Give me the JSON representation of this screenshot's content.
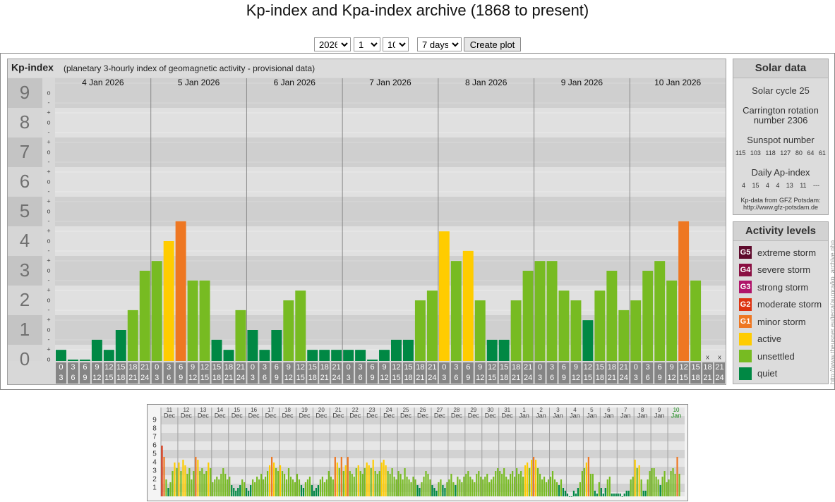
{
  "page": {
    "title": "Kp-index and Kpa-index archive (1868 to present)",
    "vertical_url": "http://www.theusner.eu/terra/aurora/kp_archive.php"
  },
  "form": {
    "year": "2026",
    "month": "1",
    "day": "10",
    "period": "7 days",
    "button": "Create plot"
  },
  "chart_data": [
    {
      "type": "bar",
      "title": "Kp-index",
      "subtitle": "(planetary 3-hourly index of geomagnetic activity - provisional data)",
      "days": [
        "4 Jan 2026",
        "5 Jan 2026",
        "6 Jan 2026",
        "7 Jan 2026",
        "8 Jan 2026",
        "9 Jan 2026",
        "10 Jan 2026"
      ],
      "hours": [
        [
          "0",
          "3"
        ],
        [
          "3",
          "6"
        ],
        [
          "6",
          "9"
        ],
        [
          "9",
          "12"
        ],
        [
          "12",
          "15"
        ],
        [
          "15",
          "18"
        ],
        [
          "18",
          "21"
        ],
        [
          "21",
          "24"
        ]
      ],
      "values": [
        0.33,
        0,
        0,
        0.67,
        0.33,
        1,
        1.67,
        3,
        3.33,
        4,
        4.67,
        2.67,
        2.67,
        0.67,
        0.33,
        1.67,
        1,
        0.33,
        1,
        2,
        2.33,
        0.33,
        0.33,
        0.33,
        0.33,
        0.33,
        0,
        0.33,
        0.67,
        0.67,
        2,
        2.33,
        4.33,
        3.33,
        3.67,
        2,
        0.67,
        0.67,
        2,
        3,
        3.33,
        3.33,
        2.33,
        2,
        1.33,
        2.33,
        3,
        1.67,
        2,
        3,
        3.33,
        2.67,
        4.67,
        2.67,
        null,
        null
      ],
      "colors": [
        "#084",
        "#084",
        "#084",
        "#084",
        "#084",
        "#084",
        "#7b2",
        "#7b2",
        "#7b2",
        "#fc0",
        "#e72",
        "#7b2",
        "#7b2",
        "#084",
        "#084",
        "#7b2",
        "#084",
        "#084",
        "#084",
        "#7b2",
        "#7b2",
        "#084",
        "#084",
        "#084",
        "#084",
        "#084",
        "#084",
        "#084",
        "#084",
        "#084",
        "#7b2",
        "#7b2",
        "#fc0",
        "#7b2",
        "#fc0",
        "#7b2",
        "#084",
        "#084",
        "#7b2",
        "#7b2",
        "#7b2",
        "#7b2",
        "#7b2",
        "#7b2",
        "#084",
        "#7b2",
        "#7b2",
        "#7b2",
        "#7b2",
        "#7b2",
        "#7b2",
        "#7b2",
        "#e72",
        "#7b2",
        null,
        null
      ],
      "missing_label": "x",
      "ylim": [
        0,
        9.5
      ],
      "yticks": [
        0,
        1,
        2,
        3,
        4,
        5,
        6,
        7,
        8,
        9
      ],
      "tick_suffixes": [
        "-",
        "o",
        "+"
      ]
    },
    {
      "type": "bar",
      "days": [
        "11",
        "12",
        "13",
        "14",
        "15",
        "16",
        "17",
        "18",
        "19",
        "20",
        "21",
        "22",
        "23",
        "24",
        "25",
        "26",
        "27",
        "28",
        "29",
        "30",
        "31",
        "1",
        "2",
        "3",
        "4",
        "5",
        "6",
        "7",
        "8",
        "9",
        "10"
      ],
      "months": [
        "Dec",
        "Dec",
        "Dec",
        "Dec",
        "Dec",
        "Dec",
        "Dec",
        "Dec",
        "Dec",
        "Dec",
        "Dec",
        "Dec",
        "Dec",
        "Dec",
        "Dec",
        "Dec",
        "Dec",
        "Dec",
        "Dec",
        "Dec",
        "Dec",
        "Jan",
        "Jan",
        "Jan",
        "Jan",
        "Jan",
        "Jan",
        "Jan",
        "Jan",
        "Jan",
        "Jan"
      ],
      "today_color": "#1a8a1a",
      "values": [
        6,
        4.67,
        2,
        1,
        1.67,
        3,
        4,
        3.33,
        4,
        3,
        4.33,
        3.67,
        2.67,
        3.33,
        2,
        3,
        4.67,
        4.33,
        3,
        3.33,
        2.67,
        3,
        4,
        3.33,
        1.67,
        2,
        2.33,
        2,
        2.67,
        3.33,
        2.67,
        2,
        2.33,
        1.33,
        1,
        0.67,
        1,
        1.33,
        2,
        1.67,
        1,
        0.67,
        1.33,
        2,
        1.67,
        2.33,
        2,
        2.67,
        2,
        2.33,
        3,
        3.67,
        4.67,
        4,
        3.33,
        3,
        3.67,
        3,
        2.67,
        2,
        3.33,
        2.33,
        2,
        1.67,
        2.67,
        2,
        1.33,
        1,
        1.67,
        2,
        2.33,
        1.33,
        0.67,
        1,
        1.33,
        2,
        2.33,
        1.67,
        2,
        3,
        2.33,
        2,
        4.67,
        4,
        3.33,
        4.67,
        3,
        3.67,
        4.67,
        3,
        2.67,
        2.33,
        3.33,
        3.67,
        3,
        2.67,
        3.33,
        4,
        3.67,
        3.33,
        4.33,
        3,
        2.67,
        3,
        4,
        4.33,
        3.67,
        3,
        2.67,
        3.33,
        2.33,
        2,
        3,
        2.67,
        2,
        3.33,
        2.33,
        2,
        1.67,
        2.33,
        2,
        1.33,
        1,
        1.67,
        2.33,
        3,
        2.67,
        2,
        1.33,
        1,
        0.67,
        1.67,
        2,
        1.33,
        1,
        1.67,
        2,
        2.67,
        1.67,
        1.33,
        2.33,
        2,
        1.67,
        2.33,
        2.67,
        3,
        2.33,
        2,
        1.67,
        2.67,
        3,
        2.33,
        2,
        2.33,
        2.67,
        1.67,
        2,
        2.33,
        3,
        3.33,
        3,
        2.67,
        3.33,
        2.33,
        2,
        2.67,
        3,
        2.33,
        3.33,
        2.67,
        3,
        2.33,
        3.67,
        4,
        3.33,
        4.33,
        4.67,
        4.33,
        3.33,
        2.67,
        2,
        2.33,
        1.67,
        2,
        2.33,
        3,
        2,
        1.67,
        1.33,
        2,
        1,
        0.67,
        0.33,
        0,
        0,
        0.67,
        0.33,
        1,
        1.67,
        3,
        3.33,
        4,
        4.67,
        2.67,
        2.67,
        0.67,
        0.33,
        1.67,
        1,
        0.33,
        1,
        2,
        2.33,
        0.33,
        0.33,
        0.33,
        0.33,
        0.33,
        0,
        0.33,
        0.67,
        0.67,
        2,
        2.33,
        4.33,
        3.33,
        3.67,
        2,
        0.67,
        0.67,
        2,
        3,
        3.33,
        3.33,
        2.33,
        2,
        1.33,
        2.33,
        3,
        1.67,
        2,
        3,
        3.33,
        2.67,
        4.67,
        2.67,
        null,
        null
      ],
      "colors": [
        "#d31",
        "#e72",
        "#7b2",
        "#084",
        "#7b2",
        "#7b2",
        "#fc0",
        "#7b2",
        "#fc0",
        "#7b2",
        "#fc0",
        "#fc0",
        "#7b2",
        "#7b2",
        "#7b2",
        "#7b2",
        "#e72",
        "#fc0",
        "#7b2",
        "#7b2",
        "#7b2",
        "#7b2",
        "#fc0",
        "#7b2",
        "#7b2",
        "#7b2",
        "#7b2",
        "#7b2",
        "#7b2",
        "#7b2",
        "#7b2",
        "#7b2",
        "#7b2",
        "#084",
        "#084",
        "#084",
        "#084",
        "#084",
        "#7b2",
        "#7b2",
        "#084",
        "#084",
        "#084",
        "#7b2",
        "#7b2",
        "#7b2",
        "#7b2",
        "#7b2",
        "#7b2",
        "#7b2",
        "#7b2",
        "#fc0",
        "#e72",
        "#fc0",
        "#7b2",
        "#7b2",
        "#fc0",
        "#7b2",
        "#7b2",
        "#7b2",
        "#7b2",
        "#7b2",
        "#7b2",
        "#7b2",
        "#7b2",
        "#7b2",
        "#084",
        "#084",
        "#7b2",
        "#7b2",
        "#7b2",
        "#084",
        "#084",
        "#084",
        "#084",
        "#7b2",
        "#7b2",
        "#7b2",
        "#7b2",
        "#7b2",
        "#7b2",
        "#7b2",
        "#e72",
        "#fc0",
        "#7b2",
        "#e72",
        "#7b2",
        "#fc0",
        "#e72",
        "#7b2",
        "#7b2",
        "#7b2",
        "#7b2",
        "#fc0",
        "#7b2",
        "#7b2",
        "#7b2",
        "#fc0",
        "#fc0",
        "#7b2",
        "#fc0",
        "#7b2",
        "#7b2",
        "#7b2",
        "#fc0",
        "#fc0",
        "#fc0",
        "#7b2",
        "#7b2",
        "#7b2",
        "#7b2",
        "#7b2",
        "#7b2",
        "#7b2",
        "#7b2",
        "#7b2",
        "#7b2",
        "#7b2",
        "#7b2",
        "#7b2",
        "#7b2",
        "#084",
        "#084",
        "#7b2",
        "#7b2",
        "#7b2",
        "#7b2",
        "#7b2",
        "#084",
        "#084",
        "#084",
        "#7b2",
        "#7b2",
        "#084",
        "#084",
        "#7b2",
        "#7b2",
        "#7b2",
        "#7b2",
        "#084",
        "#7b2",
        "#7b2",
        "#7b2",
        "#7b2",
        "#7b2",
        "#7b2",
        "#7b2",
        "#7b2",
        "#7b2",
        "#7b2",
        "#7b2",
        "#7b2",
        "#7b2",
        "#7b2",
        "#7b2",
        "#7b2",
        "#7b2",
        "#7b2",
        "#7b2",
        "#7b2",
        "#7b2",
        "#7b2",
        "#7b2",
        "#7b2",
        "#7b2",
        "#7b2",
        "#7b2",
        "#7b2",
        "#7b2",
        "#7b2",
        "#7b2",
        "#7b2",
        "#fc0",
        "#fc0",
        "#7b2",
        "#fc0",
        "#e72",
        "#fc0",
        "#7b2",
        "#7b2",
        "#7b2",
        "#7b2",
        "#7b2",
        "#7b2",
        "#7b2",
        "#7b2",
        "#7b2",
        "#7b2",
        "#084",
        "#7b2",
        "#084",
        "#084",
        "#084",
        "#084",
        "#084",
        "#084",
        "#084",
        "#084",
        "#7b2",
        "#7b2",
        "#7b2",
        "#fc0",
        "#e72",
        "#7b2",
        "#7b2",
        "#084",
        "#084",
        "#7b2",
        "#084",
        "#084",
        "#084",
        "#7b2",
        "#7b2",
        "#084",
        "#084",
        "#084",
        "#084",
        "#084",
        "#084",
        "#084",
        "#084",
        "#084",
        "#7b2",
        "#7b2",
        "#fc0",
        "#7b2",
        "#fc0",
        "#7b2",
        "#084",
        "#084",
        "#7b2",
        "#7b2",
        "#7b2",
        "#7b2",
        "#7b2",
        "#7b2",
        "#084",
        "#7b2",
        "#7b2",
        "#7b2",
        "#7b2",
        "#7b2",
        "#7b2",
        "#7b2",
        "#e72",
        "#7b2",
        null,
        null
      ],
      "ylim": [
        0,
        10.5
      ],
      "yticks": [
        1,
        2,
        3,
        4,
        5,
        6,
        7,
        8,
        9
      ]
    }
  ],
  "solar_data": {
    "title": "Solar data",
    "cycle": "Solar cycle 25",
    "carrington": "Carrington rotation number 2306",
    "sunspot_title": "Sunspot number",
    "sunspots": [
      115,
      103,
      118,
      127,
      80,
      64,
      61
    ],
    "ap_title": "Daily Ap-index",
    "ap_index": [
      4,
      15,
      4,
      4,
      13,
      11,
      null
    ],
    "ap_missing_label": "---",
    "source": "Kp-data from GFZ Potsdam:",
    "source_url": "http://www.gfz-potsdam.de"
  },
  "activity_levels": {
    "title": "Activity levels",
    "items": [
      {
        "code": "G5",
        "label": "extreme storm",
        "color": "#5e0a2c"
      },
      {
        "code": "G4",
        "label": "severe storm",
        "color": "#8a1042"
      },
      {
        "code": "G3",
        "label": "strong storm",
        "color": "#b0146a"
      },
      {
        "code": "G2",
        "label": "moderate storm",
        "color": "#d31"
      },
      {
        "code": "G1",
        "label": "minor storm",
        "color": "#e72"
      },
      {
        "label": "active",
        "color": "#fc0"
      },
      {
        "label": "unsettled",
        "color": "#7b2"
      },
      {
        "label": "quiet",
        "color": "#084"
      }
    ]
  }
}
